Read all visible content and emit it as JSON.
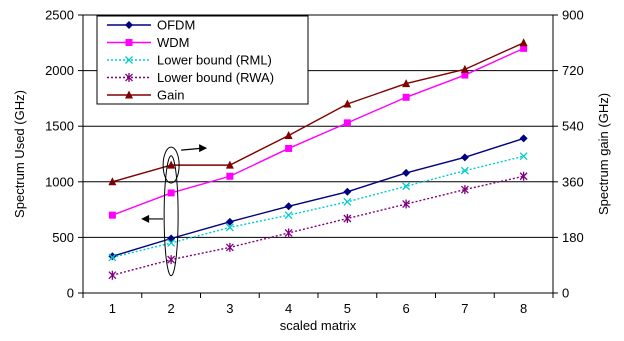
{
  "chart_data": {
    "type": "line",
    "title": "",
    "xlabel": "scaled matrix",
    "ylabel_left": "Spectrum Used (GHz)",
    "ylabel_right": "Spectrum gain (GHz)",
    "x": [
      1,
      2,
      3,
      4,
      5,
      6,
      7,
      8
    ],
    "x_ticks": [
      "1",
      "2",
      "3",
      "4",
      "5",
      "6",
      "7",
      "8"
    ],
    "ylim_left": [
      0,
      2500
    ],
    "yticks_left": [
      "0",
      "500",
      "1000",
      "1500",
      "2000",
      "2500"
    ],
    "ylim_right": [
      0,
      900
    ],
    "yticks_right": [
      "0",
      "180",
      "360",
      "540",
      "720",
      "900"
    ],
    "grid": "horizontal",
    "legend_position": "top-left",
    "series": [
      {
        "name": "OFDM",
        "axis": "left",
        "color": "#000080",
        "marker": "diamond",
        "dash": "solid",
        "values": [
          330,
          490,
          640,
          780,
          910,
          1080,
          1220,
          1390
        ]
      },
      {
        "name": "WDM",
        "axis": "left",
        "color": "#ff00ff",
        "marker": "square",
        "dash": "solid",
        "values": [
          700,
          900,
          1050,
          1300,
          1530,
          1760,
          1960,
          2200
        ]
      },
      {
        "name": "Lower bound (RML)",
        "axis": "left",
        "color": "#00cccc",
        "marker": "x",
        "dash": "dotted",
        "values": [
          320,
          450,
          590,
          700,
          820,
          960,
          1100,
          1230
        ]
      },
      {
        "name": "Lower bound (RWA)",
        "axis": "left",
        "color": "#800080",
        "marker": "star",
        "dash": "dotted",
        "values": [
          160,
          300,
          410,
          540,
          670,
          800,
          930,
          1050
        ]
      },
      {
        "name": "Gain",
        "axis": "right",
        "color": "#800000",
        "marker": "triangle",
        "dash": "solid",
        "values": [
          360,
          414,
          414,
          510,
          612,
          678,
          724,
          810
        ]
      }
    ]
  }
}
